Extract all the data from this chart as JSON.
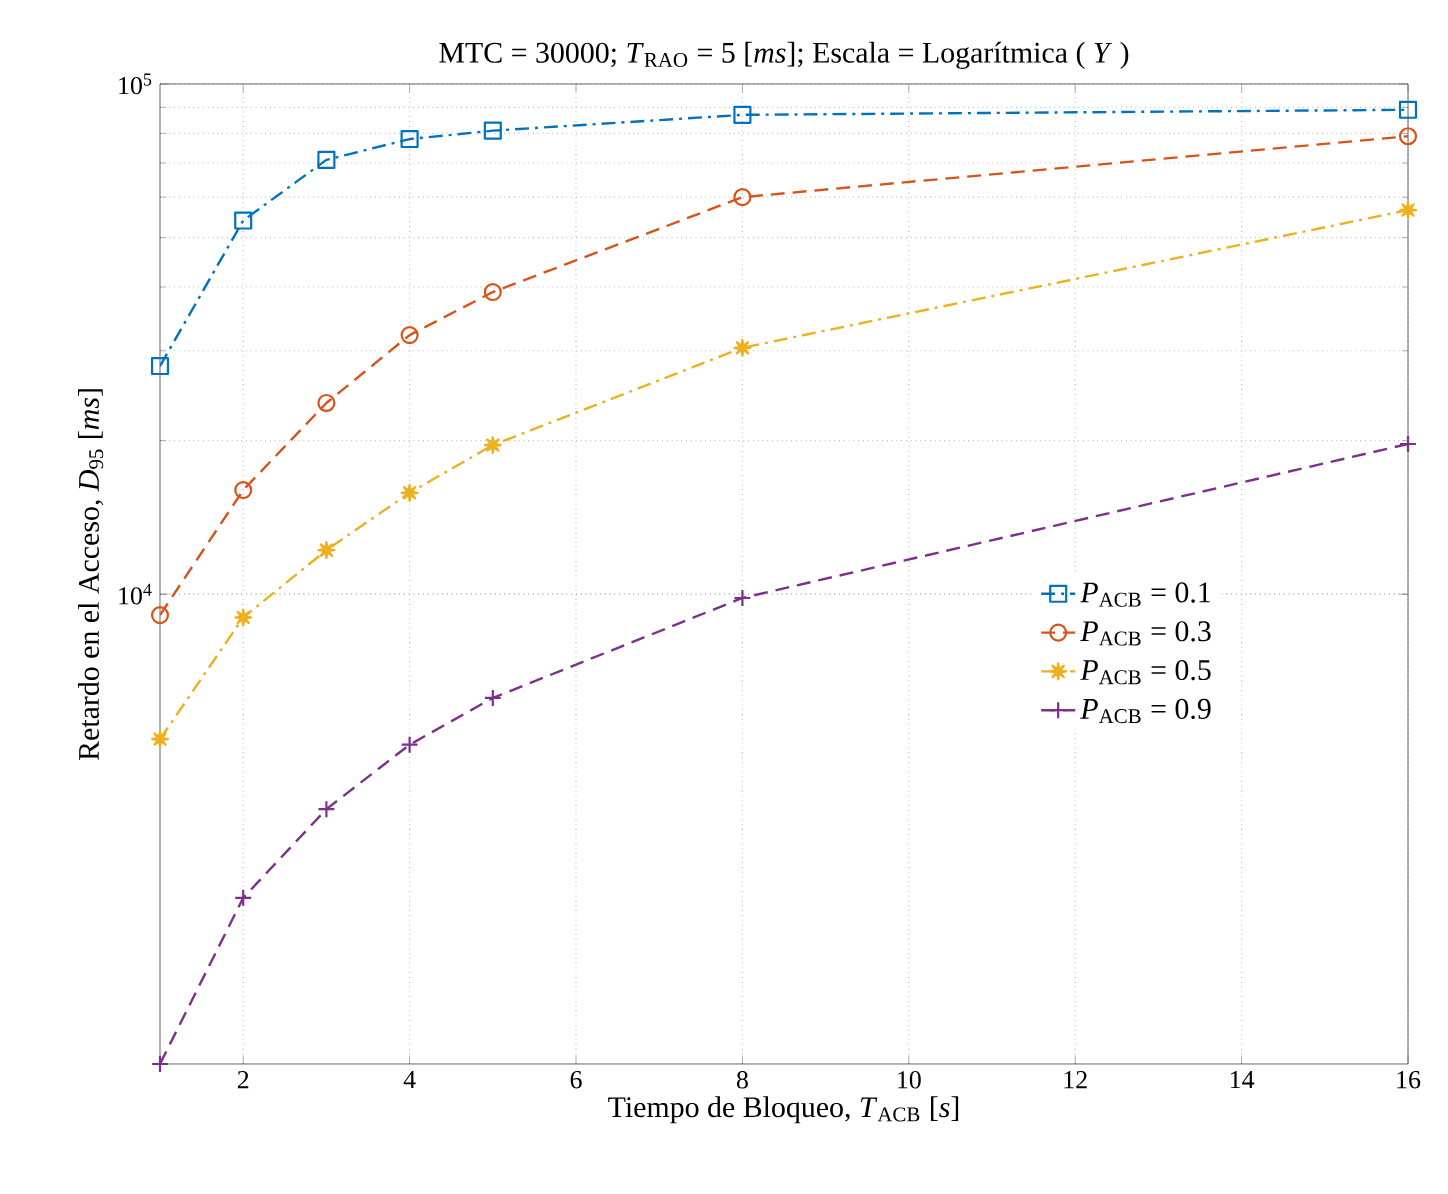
{
  "chart_data": {
    "type": "line",
    "title": "MTC = 30000;  *T*$_{RAO}$ = 5 [*ms*];  Escala = Logarítmica ( *Y* )",
    "xlabel": "Tiempo de Bloqueo,  *T*$_{ACB}$  [*s*]",
    "ylabel": "Retardo en el Acceso,  *D*$_{95}$  [*ms*]",
    "x": [
      1,
      2,
      3,
      4,
      5,
      8,
      16
    ],
    "xlim": [
      1,
      16
    ],
    "xticks": [
      2,
      4,
      6,
      8,
      10,
      12,
      14,
      16
    ],
    "ylim": [
      1200,
      100000
    ],
    "yticks": [
      {
        "value": 10000,
        "label": "10$^{4}$"
      },
      {
        "value": 100000,
        "label": "10$^{5}$"
      }
    ],
    "log": "y",
    "grid": true,
    "legend": "right",
    "series": [
      {
        "name": "*P*$_{ACB}$ = 0.1",
        "color": "#0072bd",
        "marker": "square",
        "line_style": "dashdot",
        "values": [
          28000,
          54000,
          71000,
          78000,
          81000,
          87000,
          89000
        ]
      },
      {
        "name": "*P*$_{ACB}$ = 0.3",
        "color": "#d95319",
        "marker": "circle",
        "line_style": "dashed",
        "values": [
          9100,
          16000,
          23700,
          32200,
          39100,
          60000,
          79000
        ]
      },
      {
        "name": "*P*$_{ACB}$ = 0.5",
        "color": "#edb120",
        "marker": "star",
        "line_style": "dashdot",
        "values": [
          5200,
          9000,
          12200,
          15800,
          19600,
          30400,
          56600
        ]
      },
      {
        "name": "*P*$_{ACB}$ = 0.9",
        "color": "#7e2f8e",
        "marker": "cross",
        "line_style": "dashed",
        "values": [
          1200,
          2540,
          3790,
          5070,
          6260,
          9830,
          19700
        ]
      }
    ]
  }
}
